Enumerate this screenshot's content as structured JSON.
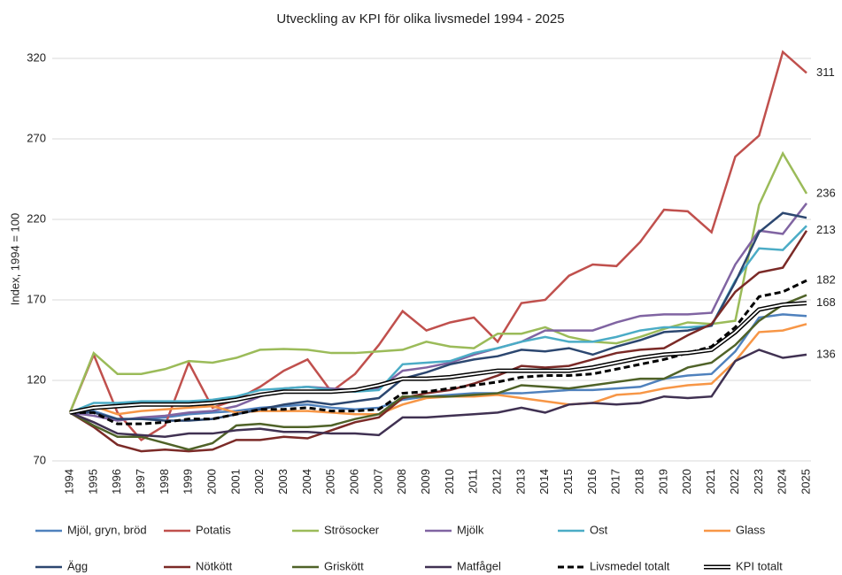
{
  "chart_data": {
    "type": "line",
    "title": "Utveckling av KPI för olika livsmedel 1994 - 2025",
    "y_label": "Index, 1994 = 100",
    "categories": [
      "1994",
      "1995",
      "1996",
      "1997",
      "1998",
      "1999",
      "2000",
      "2001",
      "2002",
      "2003",
      "2004",
      "2005",
      "2006",
      "2007",
      "2008",
      "2009",
      "2010",
      "2011",
      "2012",
      "2013",
      "2014",
      "2015",
      "2016",
      "2017",
      "2018",
      "2019",
      "2020",
      "2021",
      "2022",
      "2023",
      "2024",
      "2025"
    ],
    "ylim": [
      70,
      320
    ],
    "yticks": [
      70,
      120,
      170,
      220,
      270,
      320
    ],
    "grid": true,
    "legend": "bottom",
    "end_labels": [
      311,
      236,
      213,
      182,
      168,
      136
    ],
    "series": [
      {
        "name": "Mjöl, gryn, bröd",
        "color": "#4f81bd",
        "style": "solid",
        "values": [
          100,
          101,
          96,
          96,
          97,
          99,
          100,
          101,
          103,
          104,
          105,
          103,
          102,
          103,
          108,
          110,
          111,
          112,
          112,
          112,
          113,
          114,
          114,
          115,
          116,
          121,
          123,
          124,
          138,
          159,
          161,
          160
        ]
      },
      {
        "name": "Potatis",
        "color": "#c0504d",
        "style": "solid",
        "values": [
          100,
          136,
          100,
          83,
          92,
          131,
          103,
          108,
          116,
          126,
          133,
          113,
          124,
          142,
          163,
          151,
          156,
          159,
          144,
          168,
          170,
          185,
          192,
          191,
          206,
          226,
          225,
          212,
          259,
          272,
          324,
          311
        ]
      },
      {
        "name": "Strösocker",
        "color": "#9bbb59",
        "style": "solid",
        "values": [
          100,
          137,
          124,
          124,
          127,
          132,
          131,
          134,
          139,
          139.5,
          139,
          137,
          137,
          138,
          139,
          144,
          141,
          140,
          149,
          149,
          153,
          147,
          144,
          143,
          147,
          152,
          156,
          155,
          157,
          229,
          261,
          236
        ]
      },
      {
        "name": "Mjölk",
        "color": "#8064a2",
        "style": "solid",
        "values": [
          100,
          98,
          95,
          97,
          98,
          100,
          101,
          104,
          110,
          115,
          116,
          115,
          114,
          115,
          126,
          128,
          131,
          136,
          140,
          144,
          151,
          151,
          151,
          156,
          160,
          161,
          161,
          162,
          192,
          213,
          211,
          230
        ]
      },
      {
        "name": "Ost",
        "color": "#4bacc6",
        "style": "solid",
        "values": [
          100,
          106,
          106,
          107,
          107,
          107,
          108,
          110,
          114,
          115,
          116,
          114,
          113,
          114,
          130,
          131,
          132,
          137,
          140,
          144,
          147,
          144,
          144,
          147,
          151,
          153,
          153,
          154,
          182,
          202,
          201,
          216
        ]
      },
      {
        "name": "Glass",
        "color": "#f79646",
        "style": "solid",
        "values": [
          100,
          104,
          99,
          101,
          102,
          103,
          104,
          100,
          101,
          101,
          101,
          100,
          99,
          99,
          105,
          109,
          110,
          110,
          111,
          109,
          107,
          105,
          106,
          111,
          112,
          115,
          117,
          118,
          132,
          150,
          151,
          155
        ]
      },
      {
        "name": "Ägg",
        "color": "#2c4770",
        "style": "solid",
        "values": [
          100,
          100,
          96,
          96,
          95,
          95,
          96,
          99,
          102,
          105,
          107,
          105,
          107,
          109,
          121,
          125,
          130,
          133,
          135,
          139,
          138,
          140,
          136,
          141,
          145,
          150,
          151,
          154,
          181,
          212,
          224,
          221
        ]
      },
      {
        "name": "Nötkött",
        "color": "#7b2a27",
        "style": "solid",
        "values": [
          100,
          91,
          80,
          76,
          77,
          76,
          77,
          83,
          83,
          85,
          84,
          89,
          94,
          97,
          109,
          112,
          114,
          118,
          123,
          129,
          128,
          129,
          133,
          137,
          139,
          140,
          148,
          155,
          175,
          187,
          190,
          213
        ]
      },
      {
        "name": "Griskött",
        "color": "#4f6228",
        "style": "solid",
        "values": [
          100,
          92,
          85,
          85,
          81,
          77,
          81,
          92,
          93,
          91,
          91,
          92,
          96,
          99,
          110,
          110,
          110,
          111,
          112,
          117,
          116,
          115,
          117,
          119,
          121,
          121,
          128,
          131,
          142,
          157,
          167,
          173
        ]
      },
      {
        "name": "Matfågel",
        "color": "#403152",
        "style": "solid",
        "values": [
          100,
          94,
          87,
          86,
          85,
          87,
          87,
          89,
          90,
          88,
          88,
          87,
          87,
          86,
          97,
          97,
          98,
          99,
          100,
          103,
          100,
          105,
          106,
          105,
          106,
          110,
          109,
          110,
          132,
          139,
          134,
          136
        ]
      },
      {
        "name": "Livsmedel totalt",
        "color": "#000000",
        "style": "dashed",
        "values": [
          100,
          100,
          93,
          93,
          94,
          96,
          96,
          99,
          102,
          102,
          103,
          101,
          101,
          102,
          112,
          113,
          115,
          117,
          119,
          122,
          123,
          123,
          124,
          127,
          130,
          133,
          137,
          141,
          153,
          172,
          175,
          182
        ]
      },
      {
        "name": "KPI totalt",
        "color": "#000000",
        "style": "double",
        "values": [
          100,
          103,
          104,
          105,
          105,
          105,
          106,
          108,
          111,
          113,
          113,
          113,
          114,
          117,
          121,
          121,
          122,
          124,
          126,
          126,
          126,
          126,
          128,
          131,
          134,
          136,
          137,
          139,
          150,
          164,
          167,
          168
        ]
      }
    ]
  }
}
